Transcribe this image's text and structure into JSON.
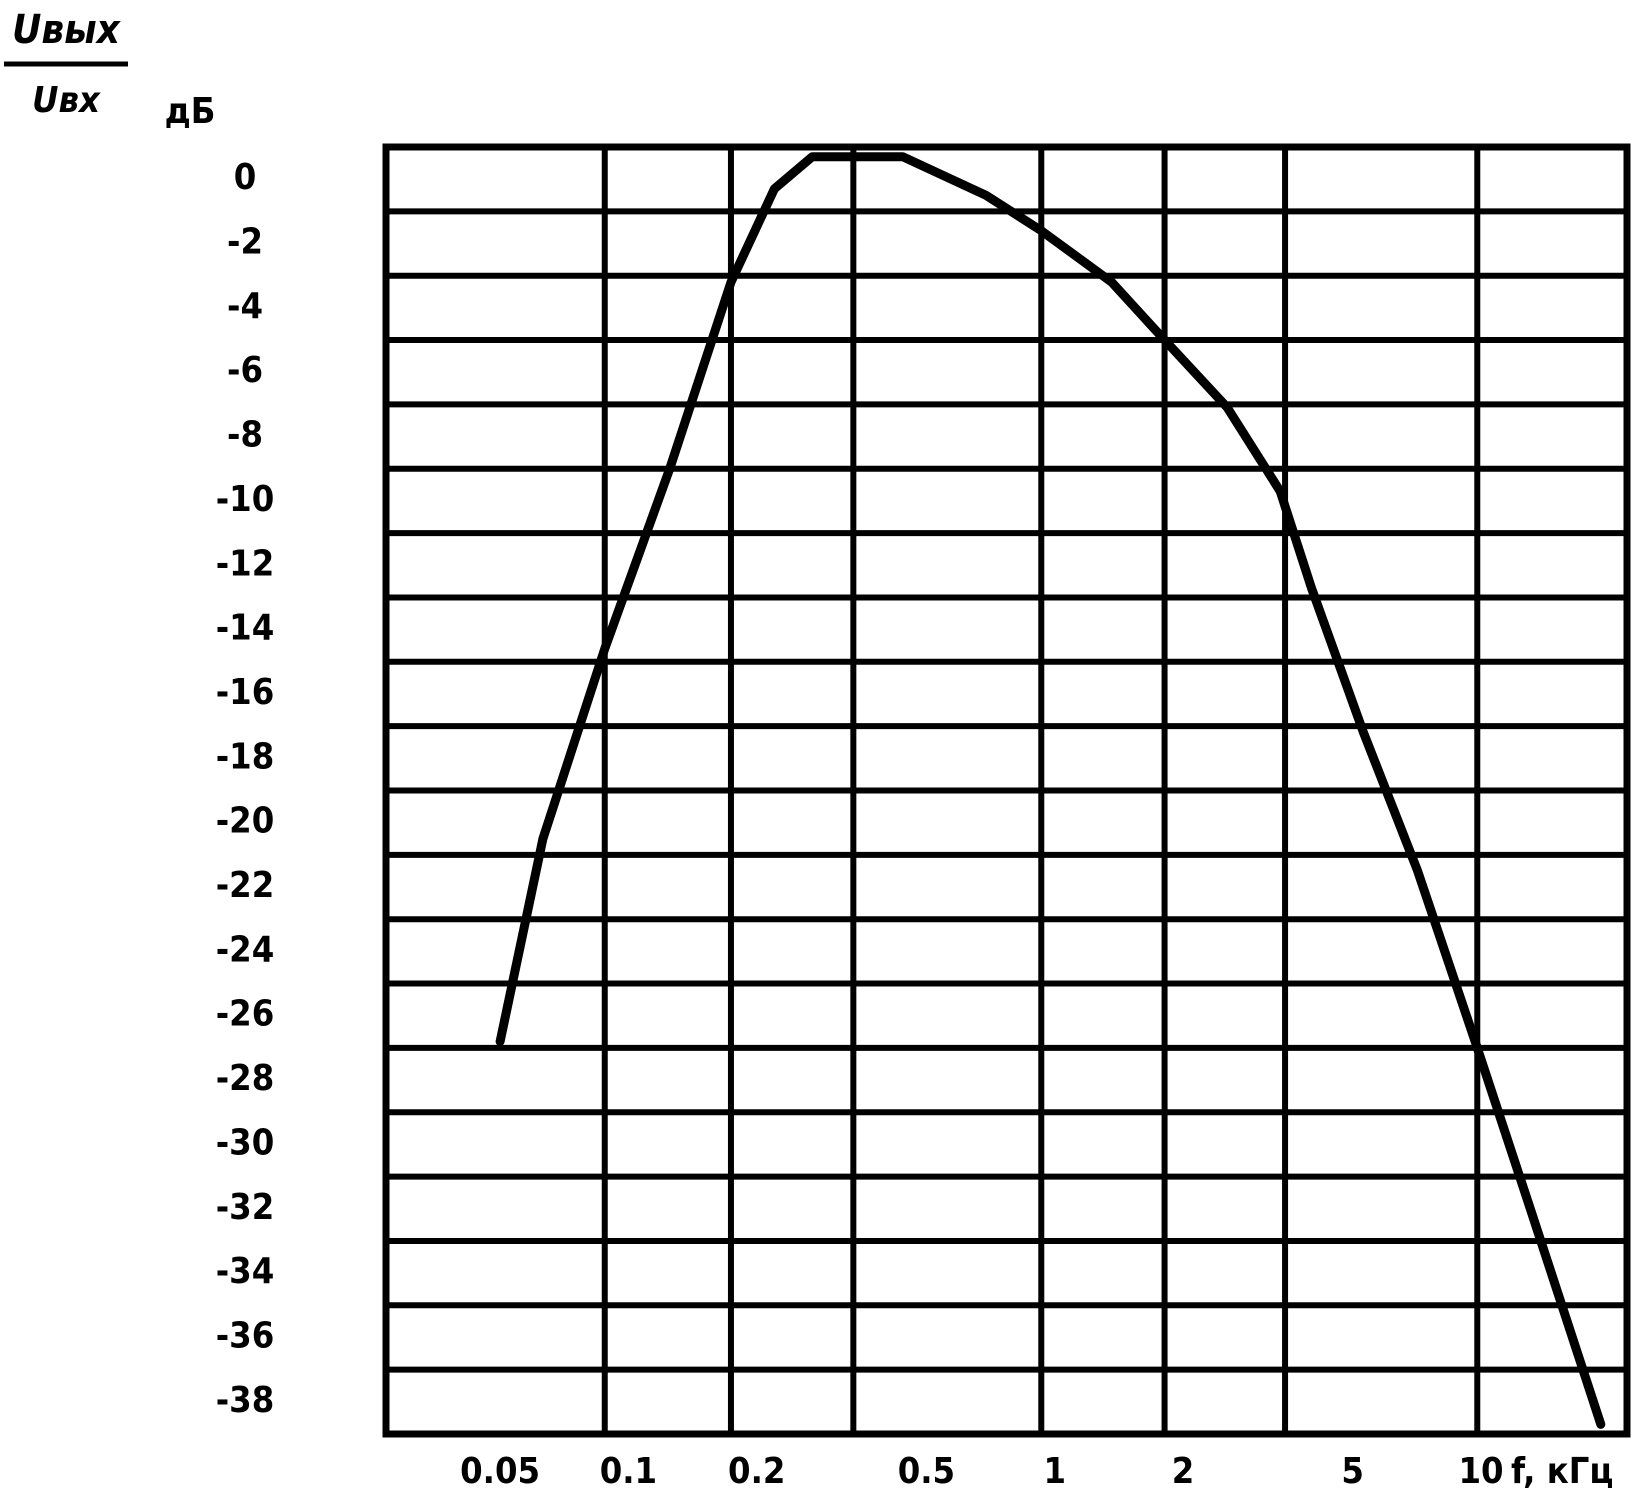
{
  "chart_data": {
    "type": "line",
    "y_label_numerator": "Uвых",
    "y_label_denominator": "Uвх",
    "y_unit": "дБ",
    "x_label": "f, кГц",
    "log_x": true,
    "xlim": [
      0.027,
      22
    ],
    "ylim": [
      -39,
      1
    ],
    "xticks": [
      0.05,
      0.1,
      0.2,
      0.5,
      1,
      2,
      5,
      10
    ],
    "yticks": [
      0,
      -2,
      -4,
      -6,
      -8,
      -10,
      -12,
      -14,
      -16,
      -18,
      -20,
      -22,
      -24,
      -26,
      -28,
      -30,
      -32,
      -34,
      -36,
      -38
    ],
    "xgrid": [
      0.088,
      0.174,
      0.337,
      0.93,
      1.81,
      3.47,
      9.8
    ],
    "ygrid": [
      -1,
      -3,
      -5,
      -7,
      -9,
      -11,
      -13,
      -15,
      -17,
      -19,
      -21,
      -23,
      -25,
      -27,
      -29,
      -31,
      -33,
      -35,
      -37
    ],
    "grid": true,
    "series": [
      {
        "color": "#000000",
        "x": [
          0.05,
          0.063,
          0.088,
          0.125,
          0.174,
          0.22,
          0.27,
          0.44,
          0.69,
          0.93,
          1.36,
          1.81,
          2.54,
          3.38,
          4.0,
          5.3,
          7.1,
          9.8,
          13.2,
          19.1
        ],
        "values": [
          -26.8,
          -20.5,
          -14.6,
          -9.0,
          -3.2,
          -0.3,
          0.7,
          0.7,
          -0.5,
          -1.6,
          -3.2,
          -5.0,
          -7.1,
          -9.7,
          -12.7,
          -17.2,
          -21.5,
          -27.0,
          -32.2,
          -38.7
        ]
      }
    ]
  }
}
